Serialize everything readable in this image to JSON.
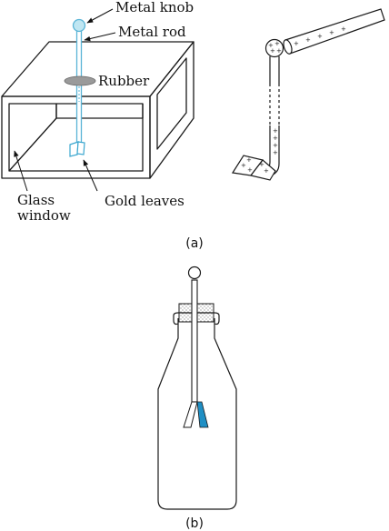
{
  "labels": {
    "metal_knob": "Metal knob",
    "metal_rod": "Metal rod",
    "rubber": "Rubber",
    "gold_leaves": "Gold leaves",
    "glass_line1": "Glass",
    "glass_line2": "window"
  },
  "captions": {
    "a": "(a)",
    "b": "(b)"
  },
  "charge_sign": "+",
  "colors": {
    "outline": "#1a1a1a",
    "rod_blue": "#5ab4d6",
    "knob_fill": "#bfe6f2",
    "rubber_gray": "#9a9a9a",
    "leaf_cyan": "#3aa6cf",
    "leaf_dark_blue": "#1f8fc4"
  }
}
